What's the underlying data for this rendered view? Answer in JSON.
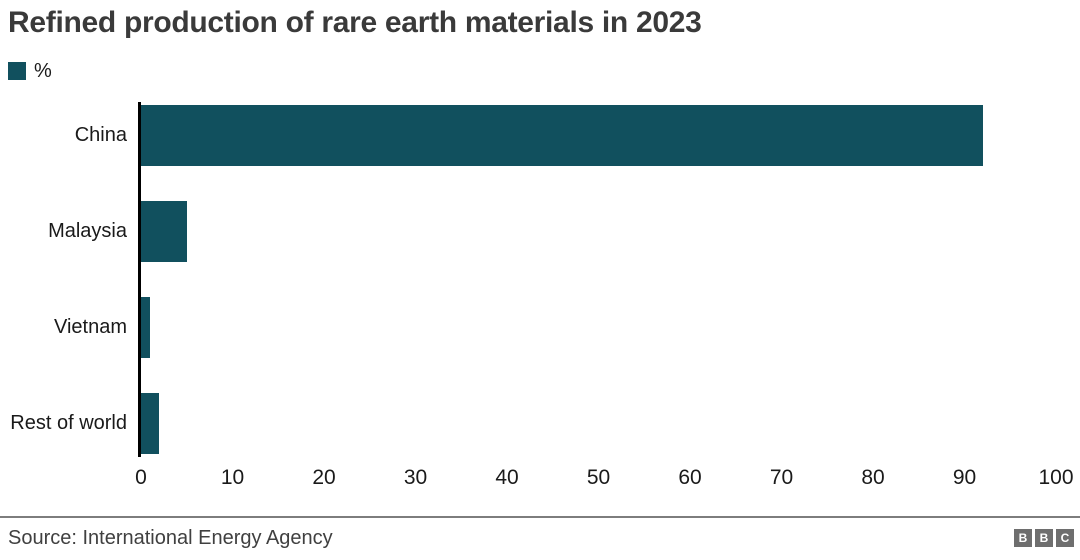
{
  "chart_data": {
    "type": "bar",
    "orientation": "horizontal",
    "title": "Refined production of rare earth materials in 2023",
    "legend": {
      "position": "top-left",
      "entries": [
        "%"
      ]
    },
    "unit_label": "%",
    "categories": [
      "China",
      "Malaysia",
      "Vietnam",
      "Rest of world"
    ],
    "values": [
      92,
      5,
      1,
      2
    ],
    "xlabel": "",
    "ylabel": "",
    "xlim": [
      0,
      100
    ],
    "x_ticks": [
      0,
      10,
      20,
      30,
      40,
      50,
      60,
      70,
      80,
      90,
      100
    ],
    "grid": false,
    "bar_color": "#11505e",
    "axis_line_color": "#000000"
  },
  "footer": {
    "source": "Source: International Energy Agency",
    "logo_letters": [
      "B",
      "B",
      "C"
    ]
  }
}
